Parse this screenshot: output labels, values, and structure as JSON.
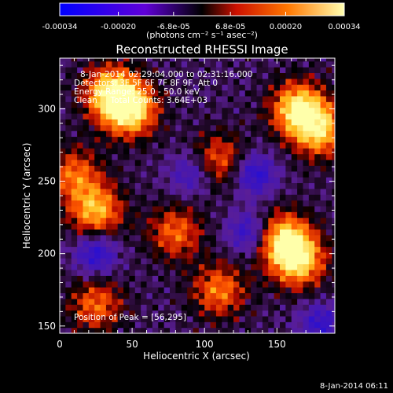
{
  "chart_data": {
    "type": "heatmap",
    "title": "Reconstructed RHESSI Image",
    "xlabel": "Heliocentric X (arcsec)",
    "ylabel": "Heliocentric Y (arcsec)",
    "xlim": [
      0,
      190
    ],
    "ylim": [
      145,
      335
    ],
    "x_ticks": [
      "0",
      "50",
      "100",
      "150"
    ],
    "x_tick_values": [
      0,
      50,
      100,
      150
    ],
    "y_ticks": [
      "150",
      "200",
      "250",
      "300"
    ],
    "y_tick_values": [
      150,
      200,
      250,
      300
    ],
    "colorbar": {
      "range": [
        -0.00034,
        0.00034
      ],
      "tick_labels": [
        "-0.00034",
        "-0.00020",
        "-6.8e-05",
        "6.8e-05",
        "0.00020",
        "0.00034"
      ],
      "tick_values": [
        -0.00034,
        -0.0002,
        -6.8e-05,
        6.8e-05,
        0.0002,
        0.00034
      ],
      "unit_label": "(photons cm⁻² s⁻¹ asec⁻²)",
      "colors": [
        "#0000ff",
        "#5a00d0",
        "#000000",
        "#cc1100",
        "#ff7700",
        "#ffffaa"
      ]
    },
    "annotations": {
      "time_range": "8-Jan-2014 02:29:04.000 to 02:31:16.000",
      "detectors": "Detectors: 3F 5F 6F 7F 8F 9F, Att 0",
      "energy_range": "Energy Range: 25.0 - 50.0 keV",
      "method_counts": "Clean     Total Counts: 3.64E+03",
      "peak": "Position of Peak = [56,295]"
    },
    "peak_position": [
      56,
      295
    ],
    "hot_regions": [
      {
        "x": 48,
        "y": 300,
        "level": 1.0
      },
      {
        "x": 35,
        "y": 312,
        "level": 0.8
      },
      {
        "x": 165,
        "y": 300,
        "level": 0.95
      },
      {
        "x": 180,
        "y": 285,
        "level": 0.75
      },
      {
        "x": 155,
        "y": 210,
        "level": 0.85
      },
      {
        "x": 165,
        "y": 195,
        "level": 0.8
      },
      {
        "x": 25,
        "y": 230,
        "level": 0.75
      },
      {
        "x": 10,
        "y": 255,
        "level": 0.55
      },
      {
        "x": 25,
        "y": 165,
        "level": 0.55
      },
      {
        "x": 110,
        "y": 175,
        "level": 0.6
      },
      {
        "x": 80,
        "y": 215,
        "level": 0.55
      },
      {
        "x": 110,
        "y": 265,
        "level": 0.5
      }
    ],
    "cold_regions": [
      {
        "x": 135,
        "y": 255,
        "level": 0.7
      },
      {
        "x": 130,
        "y": 215,
        "level": 0.6
      },
      {
        "x": 25,
        "y": 200,
        "level": 0.7
      },
      {
        "x": 180,
        "y": 152,
        "level": 0.6
      },
      {
        "x": 90,
        "y": 255,
        "level": 0.5
      }
    ]
  },
  "footer": {
    "timestamp": "8-Jan-2014 06:11"
  }
}
